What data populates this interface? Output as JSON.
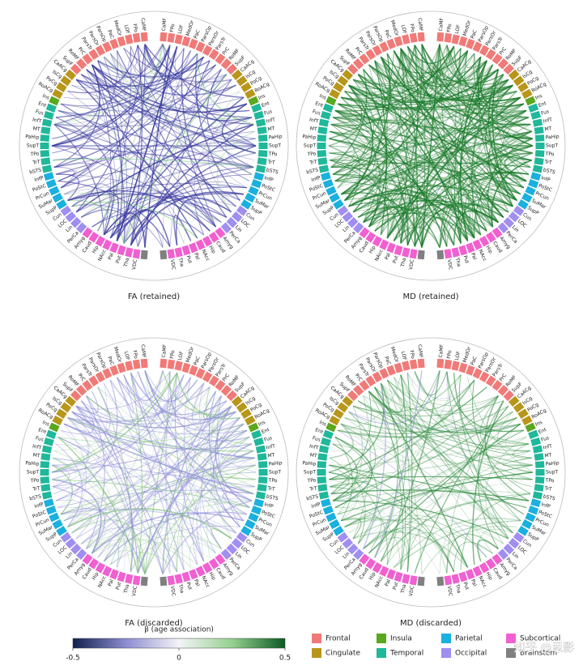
{
  "panels": [
    {
      "title": "FA (retained)",
      "color": "#3a3aa0"
    },
    {
      "title": "MD (retained)",
      "color": "#1a7a2a"
    },
    {
      "title": "FA (discarded)",
      "color": "#8a8ad8"
    },
    {
      "title": "MD (discarded)",
      "color": "#2a8a3a"
    }
  ],
  "lobes": [
    {
      "name": "Frontal",
      "color": "#f07a78",
      "regions": [
        "CaMF",
        "FPo",
        "LOF",
        "MedOr",
        "PaC",
        "ParsOp",
        "ParsOr",
        "ParsTr",
        "PrC",
        "RoMF",
        "SupF"
      ]
    },
    {
      "name": "Cingulate",
      "color": "#b8961a",
      "regions": [
        "CaACg",
        "IsCg",
        "PoCg",
        "RoACg"
      ]
    },
    {
      "name": "Insula",
      "color": "#5aa81e",
      "regions": [
        "Ins"
      ]
    },
    {
      "name": "Temporal",
      "color": "#1fb89a",
      "regions": [
        "Ent",
        "Fus",
        "InfT",
        "MT",
        "PaHip",
        "SupT",
        "TPo",
        "TrT",
        "bSTS"
      ]
    },
    {
      "name": "Parietal",
      "color": "#1ab0e0",
      "regions": [
        "InfP",
        "PoStC",
        "PrCun",
        "SuMar",
        "SupP"
      ]
    },
    {
      "name": "Occipital",
      "color": "#a08ef0",
      "regions": [
        "Cun",
        "LOC",
        "Lin",
        "PerCa"
      ]
    },
    {
      "name": "Subcortical",
      "color": "#f060d0",
      "regions": [
        "Amyg",
        "Caud",
        "Hip",
        "NAcc",
        "Pal",
        "Put",
        "Tha",
        "VDC"
      ]
    },
    {
      "name": "Brainstem",
      "color": "#808080",
      "regions": []
    }
  ],
  "colorbar": {
    "label": "β (age association)",
    "lim": [
      -0.5,
      0.5
    ],
    "ticks": [
      -0.5,
      0,
      0.5
    ]
  },
  "watermark": "知乎 @思影"
}
